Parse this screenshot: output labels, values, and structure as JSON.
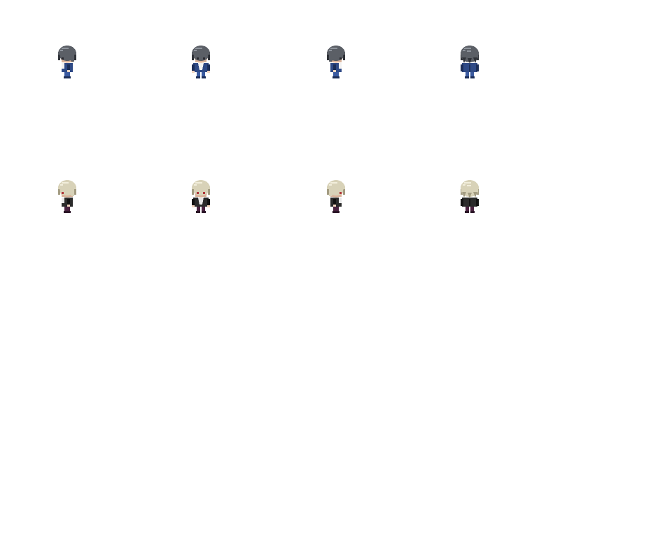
{
  "sprite_sheet": {
    "background": "#ffffff",
    "characters": [
      {
        "name": "dark-haired-boy",
        "palette": {
          "hair": "#5b5f66",
          "hair_highlight": "#8e949c",
          "hair_dark": "#2f3238",
          "skin": "#f3d7c2",
          "skin_shade": "#d9b29a",
          "eye": "#2a2a30",
          "jacket": "#2f4a86",
          "jacket_dark": "#1c2e58",
          "shirt": "#f2f2f2",
          "pants": "#3a5aa0",
          "shoes": "#1c2e58"
        },
        "poses": [
          "left",
          "front",
          "right",
          "back"
        ]
      },
      {
        "name": "blond-haired-boy",
        "palette": {
          "hair": "#d8d2b8",
          "hair_highlight": "#f2eedc",
          "hair_dark": "#a39c82",
          "skin": "#f3d7c2",
          "skin_shade": "#d9b29a",
          "eye": "#b0343a",
          "jacket": "#2b2b2b",
          "jacket_dark": "#121212",
          "shirt": "#e8e8e8",
          "pants": "#4a2340",
          "shoes": "#2a1426"
        },
        "poses": [
          "left",
          "front",
          "right",
          "back"
        ]
      }
    ]
  }
}
